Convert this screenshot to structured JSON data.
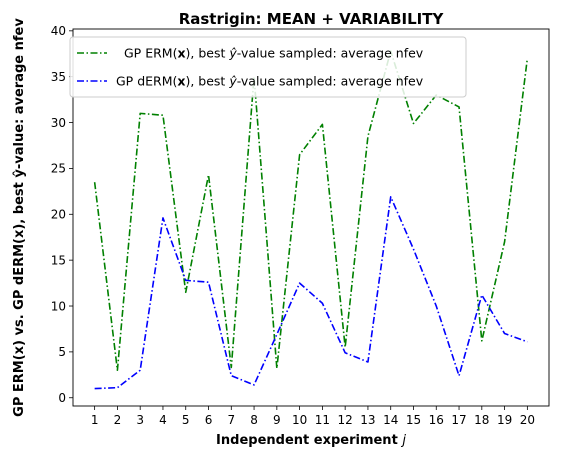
{
  "chart_data": {
    "type": "line",
    "title": "Rastrigin: MEAN + VARIABILITY",
    "xlabel_text": "Independent experiment ",
    "xlabel_var": "j",
    "ylabel": "GP ERM(x) vs. GP dERM(x), best ŷ-value: average nfev",
    "x": [
      1,
      2,
      3,
      4,
      5,
      6,
      7,
      8,
      9,
      10,
      11,
      12,
      13,
      14,
      15,
      16,
      17,
      18,
      19,
      20
    ],
    "ylim": [
      -0.9,
      40.2
    ],
    "yticks": [
      0,
      5,
      10,
      15,
      20,
      25,
      30,
      35,
      40
    ],
    "grid": false,
    "legend_position": "top-left",
    "series": [
      {
        "name_pre": "GP ERM(",
        "name_bold": "x",
        "name_mid": "), best ",
        "name_var": "ŷ",
        "name_post": "-value sampled: average nfev",
        "color": "#008000",
        "values": [
          23.5,
          3.0,
          31.0,
          30.8,
          11.5,
          24.3,
          3.3,
          35.0,
          3.2,
          26.5,
          29.8,
          5.5,
          28.5,
          37.8,
          29.9,
          33.0,
          31.7,
          6.2,
          17.0,
          37.0
        ]
      },
      {
        "name_pre": "GP dERM(",
        "name_bold": "x",
        "name_mid": "), best ",
        "name_var": "ŷ",
        "name_post": "-value sampled: average nfev",
        "color": "#0000ff",
        "values": [
          1.0,
          1.1,
          3.0,
          19.6,
          12.8,
          12.6,
          2.4,
          1.4,
          6.9,
          12.5,
          10.3,
          4.9,
          3.9,
          21.9,
          16.2,
          10.0,
          2.4,
          11.2,
          7.0,
          6.1
        ]
      }
    ]
  }
}
